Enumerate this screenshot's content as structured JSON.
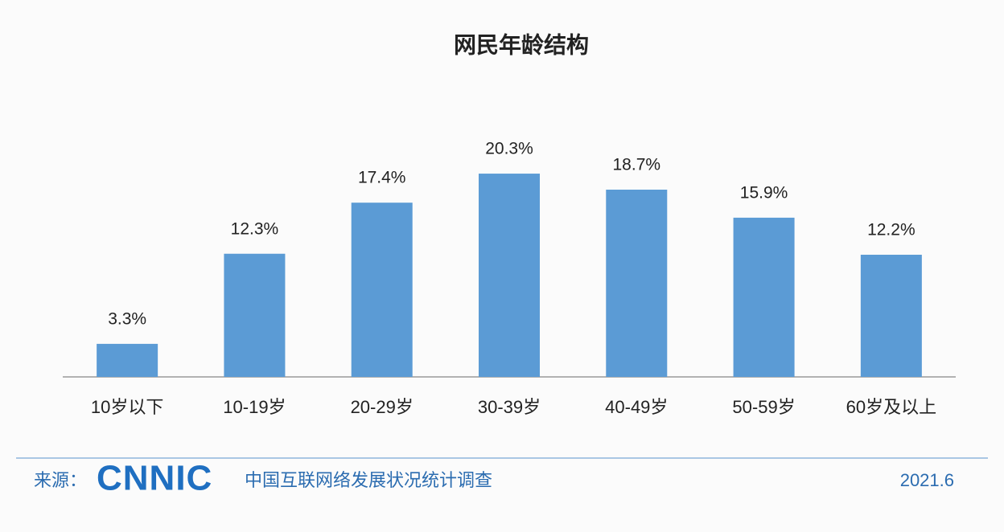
{
  "chart_data": {
    "type": "bar",
    "title": "网民年龄结构",
    "categories": [
      "10岁以下",
      "10-19岁",
      "20-29岁",
      "30-39岁",
      "40-49岁",
      "50-59岁",
      "60岁及以上"
    ],
    "values": [
      3.3,
      12.3,
      17.4,
      20.3,
      18.7,
      15.9,
      12.2
    ],
    "value_labels": [
      "3.3%",
      "12.3%",
      "17.4%",
      "20.3%",
      "18.7%",
      "15.9%",
      "12.2%"
    ],
    "color": "#5b9bd5"
  },
  "footer": {
    "source_label": "来源：",
    "logo": "CNNIC",
    "source": "中国互联网络发展状况统计调查",
    "date": "2021.6"
  }
}
